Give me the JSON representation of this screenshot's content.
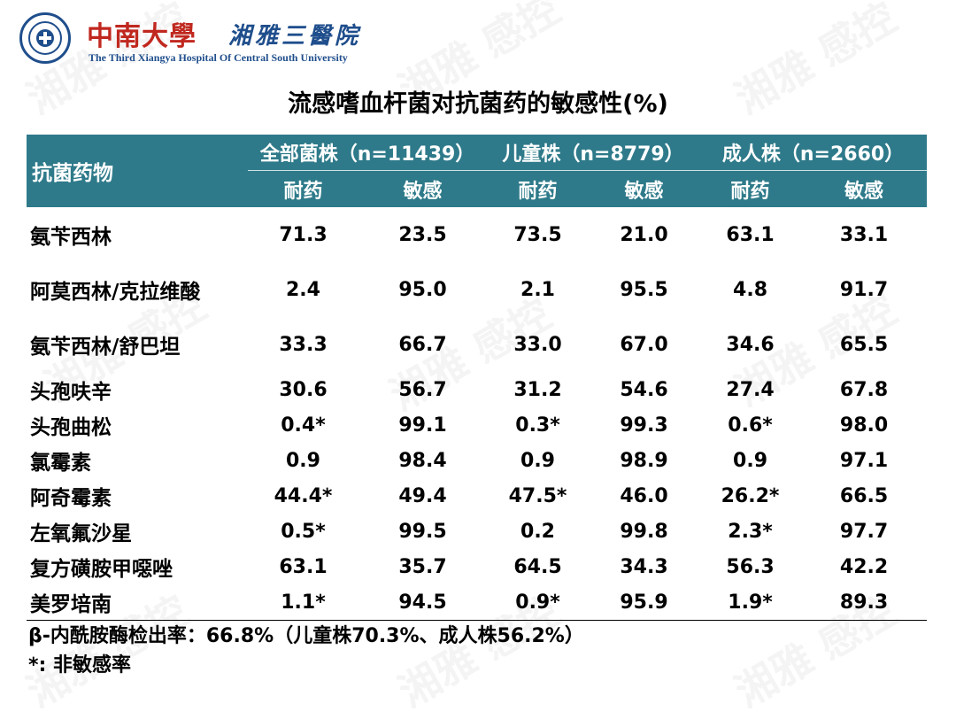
{
  "header": {
    "logo_cn": "中南大學",
    "logo_cn2": "湘雅三醫院",
    "logo_en": "The Third Xiangya Hospital Of Central South University"
  },
  "title": "流感嗜血杆菌对抗菌药的敏感性(%)",
  "table": {
    "drug_header": "抗菌药物",
    "groups": [
      "全部菌株（n=11439）",
      "儿童株（n=8779）",
      "成人株（n=2660）"
    ],
    "subheaders": [
      "耐药",
      "敏感",
      "耐药",
      "敏感",
      "耐药",
      "敏感"
    ],
    "rows": [
      {
        "drug": "氨苄西林",
        "values": [
          "71.3",
          "23.5",
          "73.5",
          "21.0",
          "63.1",
          "33.1"
        ]
      },
      {
        "drug": "阿莫西林/克拉维酸",
        "values": [
          "2.4",
          "95.0",
          "2.1",
          "95.5",
          "4.8",
          "91.7"
        ]
      },
      {
        "drug": "氨苄西林/舒巴坦",
        "values": [
          "33.3",
          "66.7",
          "33.0",
          "67.0",
          "34.6",
          "65.5"
        ]
      },
      {
        "drug": "头孢呋辛",
        "values": [
          "30.6",
          "56.7",
          "31.2",
          "54.6",
          "27.4",
          "67.8"
        ]
      },
      {
        "drug": "头孢曲松",
        "values": [
          "0.4*",
          "99.1",
          "0.3*",
          "99.3",
          "0.6*",
          "98.0"
        ]
      },
      {
        "drug": "氯霉素",
        "values": [
          "0.9",
          "98.4",
          "0.9",
          "98.9",
          "0.9",
          "97.1"
        ]
      },
      {
        "drug": "阿奇霉素",
        "values": [
          "44.4*",
          "49.4",
          "47.5*",
          "46.0",
          "26.2*",
          "66.5"
        ]
      },
      {
        "drug": "左氧氟沙星",
        "values": [
          "0.5*",
          "99.5",
          "0.2",
          "99.8",
          "2.3*",
          "97.7"
        ]
      },
      {
        "drug": "复方磺胺甲噁唑",
        "values": [
          "63.1",
          "35.7",
          "64.5",
          "34.3",
          "56.3",
          "42.2"
        ]
      },
      {
        "drug": "美罗培南",
        "values": [
          "1.1*",
          "94.5",
          "0.9*",
          "95.9",
          "1.9*",
          "89.3"
        ]
      }
    ]
  },
  "footer": {
    "line1": "β-内酰胺酶检出率：66.8%（儿童株70.3%、成人株56.2%）",
    "line2": "*: 非敏感率"
  },
  "watermark": "湘雅 感控",
  "colors": {
    "header_bg": "#2e7a8a",
    "brand_red": "#c0281f",
    "brand_blue": "#1f4e8c"
  }
}
